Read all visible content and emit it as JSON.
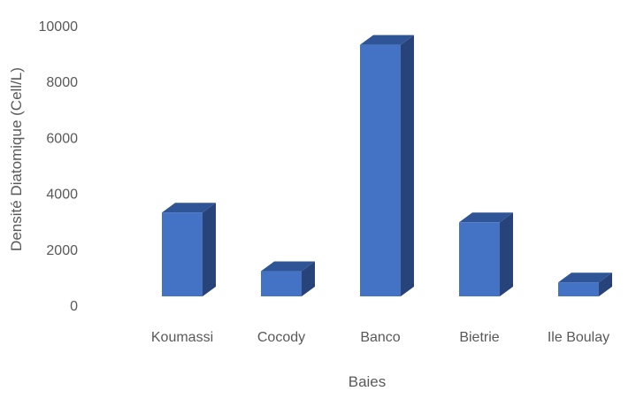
{
  "chart_data": {
    "type": "bar",
    "style": "3d-column",
    "categories": [
      "Koumassi",
      "Cocody",
      "Banco",
      "Bietrie",
      "Ile Boulay"
    ],
    "values": [
      3000,
      900,
      9000,
      2650,
      500
    ],
    "xlabel": "Baies",
    "ylabel": "Densité Diatomique (Cell/L)",
    "ylim": [
      0,
      10000
    ],
    "yticks": [
      0,
      2000,
      4000,
      6000,
      8000,
      10000
    ],
    "grid": false,
    "legend": "none",
    "colors": {
      "bar_front": "#4472C4",
      "bar_top": "#2F5597",
      "bar_side": "#27437A",
      "text": "#595959"
    }
  }
}
